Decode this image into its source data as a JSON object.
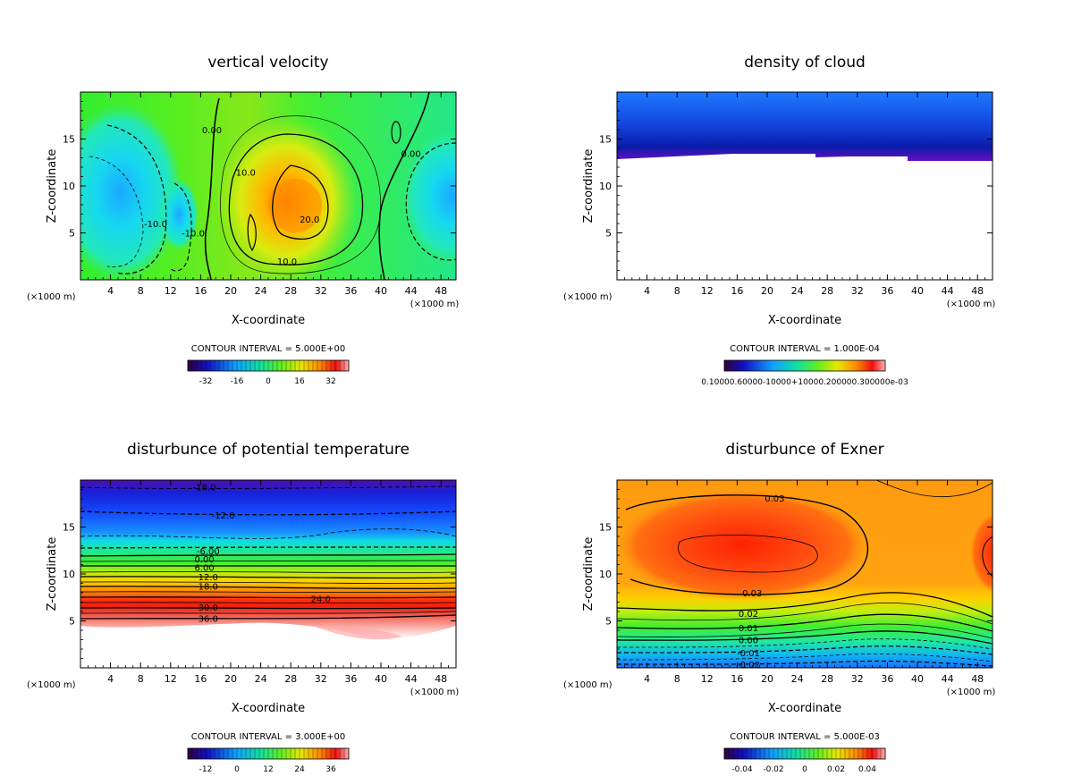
{
  "chart_data": [
    {
      "type": "heatmap",
      "title": "vertical velocity",
      "xlabel": "X-coordinate",
      "ylabel": "Z-coordinate",
      "x_unit": "(×1000 m)",
      "xticks": [
        4,
        8,
        12,
        16,
        20,
        24,
        28,
        32,
        36,
        40,
        44,
        48
      ],
      "yticks": [
        5,
        10,
        15
      ],
      "xlim": [
        0,
        50
      ],
      "ylim": [
        0,
        20
      ],
      "contour_interval": "CONTOUR INTERVAL = 5.000E+00",
      "contour_labels": [
        {
          "text": "0.00",
          "x": 17.5,
          "y": 16
        },
        {
          "text": "10.0",
          "x": 22,
          "y": 11.5
        },
        {
          "text": "20.0",
          "x": 30.5,
          "y": 6.5
        },
        {
          "text": "10.0",
          "x": 27.5,
          "y": 2
        },
        {
          "text": "-10.0",
          "x": 10,
          "y": 6
        },
        {
          "text": "-10.0",
          "x": 15,
          "y": 5
        },
        {
          "text": "0.00",
          "x": 44,
          "y": 13.5
        }
      ],
      "colorbar_ticks": [
        "-32",
        "-16",
        "0",
        "16",
        "32"
      ]
    },
    {
      "type": "heatmap",
      "title": "density of cloud",
      "xlabel": "X-coordinate",
      "ylabel": "Z-coordinate",
      "x_unit": "(×1000 m)",
      "xticks": [
        4,
        8,
        12,
        16,
        20,
        24,
        28,
        32,
        36,
        40,
        44,
        48
      ],
      "yticks": [
        5,
        10,
        15
      ],
      "xlim": [
        0,
        50
      ],
      "ylim": [
        0,
        20
      ],
      "contour_interval": "CONTOUR INTERVAL = 1.000E-04",
      "colorbar_ticks_text": "0.10000.60000-10000+10000.200000.300000e-03"
    },
    {
      "type": "heatmap",
      "title": "disturbunce of potential temperature",
      "xlabel": "X-coordinate",
      "ylabel": "Z-coordinate",
      "x_unit": "(×1000 m)",
      "xticks": [
        4,
        8,
        12,
        16,
        20,
        24,
        28,
        32,
        36,
        40,
        44,
        48
      ],
      "yticks": [
        5,
        10,
        15
      ],
      "xlim": [
        0,
        50
      ],
      "ylim": [
        0,
        20
      ],
      "contour_interval": "CONTOUR INTERVAL = 3.000E+00",
      "contour_labels": [
        {
          "text": "-18.0",
          "x": 16.5,
          "y": 19.3
        },
        {
          "text": "-12.0",
          "x": 19,
          "y": 16.3
        },
        {
          "text": "-6.00",
          "x": 17,
          "y": 12.5
        },
        {
          "text": "0.00",
          "x": 16.5,
          "y": 11.6
        },
        {
          "text": "6.00",
          "x": 16.5,
          "y": 10.7
        },
        {
          "text": "12.0",
          "x": 17,
          "y": 9.7
        },
        {
          "text": "18.0",
          "x": 17,
          "y": 8.7
        },
        {
          "text": "24.0",
          "x": 32,
          "y": 7.4
        },
        {
          "text": "30.0",
          "x": 17,
          "y": 6.5
        },
        {
          "text": "36.0",
          "x": 17,
          "y": 5.3
        }
      ],
      "colorbar_ticks": [
        "-12",
        "0",
        "12",
        "24",
        "36"
      ]
    },
    {
      "type": "heatmap",
      "title": "disturbunce of Exner",
      "xlabel": "X-coordinate",
      "ylabel": "Z-coordinate",
      "x_unit": "(×1000 m)",
      "xticks": [
        4,
        8,
        12,
        16,
        20,
        24,
        28,
        32,
        36,
        40,
        44,
        48
      ],
      "yticks": [
        5,
        10,
        15
      ],
      "xlim": [
        0,
        50
      ],
      "ylim": [
        0,
        20
      ],
      "contour_interval": "CONTOUR INTERVAL = 5.000E-03",
      "contour_labels": [
        {
          "text": "0.03",
          "x": 21,
          "y": 18.1
        },
        {
          "text": "0.03",
          "x": 18,
          "y": 8
        },
        {
          "text": "0.02",
          "x": 17.5,
          "y": 5.8
        },
        {
          "text": "0.01",
          "x": 17.5,
          "y": 4.3
        },
        {
          "text": "0.00",
          "x": 17.5,
          "y": 3
        },
        {
          "text": "-0.01",
          "x": 17.5,
          "y": 1.6
        },
        {
          "text": "-0.02",
          "x": 17.5,
          "y": 0.4
        }
      ],
      "colorbar_ticks": [
        "-0.04",
        "-0.02",
        "0",
        "0.02",
        "0.04"
      ]
    }
  ]
}
